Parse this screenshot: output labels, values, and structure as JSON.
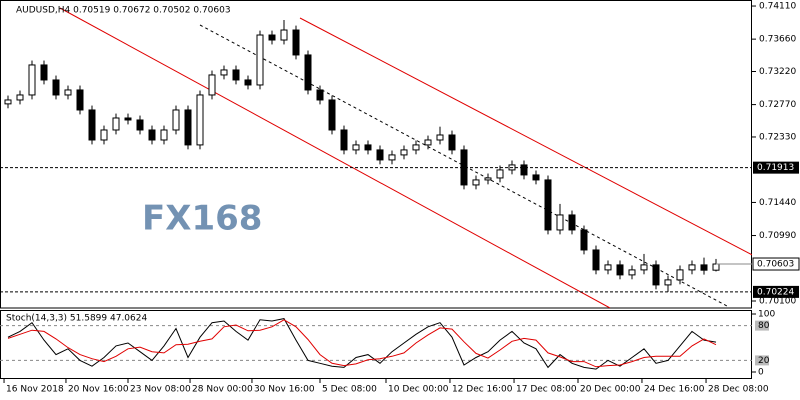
{
  "chart_data": [
    {
      "type": "candlestick",
      "title": "AUDUSD,H4  0.70519 0.70672 0.70502 0.70603",
      "watermark": "FX168",
      "open": [
        0.7278,
        0.72833,
        0.72901,
        0.73309,
        0.73105,
        0.72901,
        0.72969,
        0.72697,
        0.72289,
        0.72425,
        0.72588,
        0.72561,
        0.72425,
        0.72289,
        0.72425,
        0.72697,
        0.72222,
        0.72901,
        0.73173,
        0.73241,
        0.73105,
        0.73037,
        0.73716,
        0.73648,
        0.73784,
        0.73445,
        0.72969,
        0.72833,
        0.72425,
        0.72154,
        0.72222,
        0.72154,
        0.72018,
        0.72086,
        0.72154,
        0.72222,
        0.72289,
        0.72357,
        0.72154,
        0.71678,
        0.71746,
        0.71773,
        0.71882,
        0.7195,
        0.71814,
        0.71746,
        0.71066,
        0.7127,
        0.71066,
        0.70794,
        0.70523,
        0.70591,
        0.70455,
        0.70523,
        0.70591,
        0.70319,
        0.70387,
        0.70523,
        0.70591,
        0.70519
      ],
      "high": [
        0.72893,
        0.72961,
        0.73369,
        0.73369,
        0.73165,
        0.73029,
        0.73029,
        0.72757,
        0.72485,
        0.72648,
        0.72648,
        0.72621,
        0.72485,
        0.72485,
        0.72757,
        0.72757,
        0.72961,
        0.73233,
        0.73301,
        0.73301,
        0.73165,
        0.73776,
        0.73776,
        0.7392,
        0.73844,
        0.73505,
        0.73029,
        0.72893,
        0.72485,
        0.72282,
        0.72282,
        0.72214,
        0.72146,
        0.72214,
        0.72282,
        0.72349,
        0.7247,
        0.72417,
        0.72214,
        0.71806,
        0.71833,
        0.71942,
        0.7201,
        0.7201,
        0.71874,
        0.71806,
        0.7142,
        0.7133,
        0.71126,
        0.70854,
        0.70651,
        0.70651,
        0.70583,
        0.7074,
        0.70651,
        0.70447,
        0.70583,
        0.70651,
        0.7069,
        0.70672
      ],
      "low": [
        0.7272,
        0.72773,
        0.72841,
        0.73045,
        0.72841,
        0.72841,
        0.72637,
        0.72229,
        0.72229,
        0.72365,
        0.72501,
        0.72365,
        0.72229,
        0.72229,
        0.72365,
        0.72162,
        0.72162,
        0.72841,
        0.73113,
        0.73045,
        0.72977,
        0.72977,
        0.73588,
        0.73588,
        0.73385,
        0.72909,
        0.72773,
        0.72365,
        0.72094,
        0.72094,
        0.72094,
        0.71958,
        0.71958,
        0.72026,
        0.72094,
        0.72162,
        0.72229,
        0.72094,
        0.71618,
        0.71618,
        0.71686,
        0.71713,
        0.71822,
        0.71754,
        0.71686,
        0.71006,
        0.71006,
        0.71006,
        0.70734,
        0.70463,
        0.70463,
        0.70395,
        0.70395,
        0.70463,
        0.70259,
        0.70224,
        0.70327,
        0.70463,
        0.70459,
        0.70502
      ],
      "close": [
        0.72833,
        0.72901,
        0.73309,
        0.73105,
        0.72901,
        0.72969,
        0.72697,
        0.72289,
        0.72425,
        0.72588,
        0.72561,
        0.72425,
        0.72289,
        0.72425,
        0.72697,
        0.72222,
        0.72901,
        0.73173,
        0.73241,
        0.73105,
        0.73037,
        0.73716,
        0.73648,
        0.73784,
        0.73445,
        0.72969,
        0.72833,
        0.72425,
        0.72154,
        0.72222,
        0.72154,
        0.72018,
        0.72086,
        0.72154,
        0.72222,
        0.72289,
        0.72357,
        0.72154,
        0.71678,
        0.71746,
        0.71773,
        0.71882,
        0.7195,
        0.71814,
        0.71746,
        0.71066,
        0.7127,
        0.71066,
        0.70794,
        0.70523,
        0.70591,
        0.70455,
        0.70523,
        0.70591,
        0.70319,
        0.70387,
        0.70523,
        0.70591,
        0.70519,
        0.70603
      ],
      "ylim": [
        0.70005,
        0.74192
      ],
      "yticks": [
        {
          "value": 0.7411,
          "label": "0.74110"
        },
        {
          "value": 0.7366,
          "label": "0.73660"
        },
        {
          "value": 0.7322,
          "label": "0.73220"
        },
        {
          "value": 0.7277,
          "label": "0.72770"
        },
        {
          "value": 0.7233,
          "label": "0.72330"
        },
        {
          "value": 0.7144,
          "label": "0.71440"
        },
        {
          "value": 0.7099,
          "label": "0.70990"
        },
        {
          "value": 0.701,
          "label": "0.70100"
        }
      ],
      "xlim": [
        -0.6667,
        61.9167
      ],
      "xticks": [
        {
          "value": -0.33,
          "label": "16 Nov 2018"
        },
        {
          "value": 4.83,
          "label": "20 Nov 16:00"
        },
        {
          "value": 10,
          "label": "23 Nov 08:00"
        },
        {
          "value": 15.17,
          "label": "28 Nov 00:00"
        },
        {
          "value": 20.33,
          "label": "30 Nov 16:00"
        },
        {
          "value": 26,
          "label": "5 Dec 08:00"
        },
        {
          "value": 31.5,
          "label": "10 Dec 00:00"
        },
        {
          "value": 36.83,
          "label": "12 Dec 16:00"
        },
        {
          "value": 42.17,
          "label": "17 Dec 08:00"
        },
        {
          "value": 47.5,
          "label": "20 Dec 00:00"
        },
        {
          "value": 52.83,
          "label": "24 Dec 16:00"
        },
        {
          "value": 58.17,
          "label": "28 Dec 08:00"
        }
      ],
      "hlines": [
        0.71913,
        0.70224
      ],
      "last_price": 0.70603
    },
    {
      "type": "stochastic",
      "title": "Stoch(14,3,3) 51.5899 47.0624",
      "series": [
        {
          "color": "#000000",
          "values": [
            60,
            70,
            85,
            55,
            30,
            40,
            20,
            10,
            25,
            45,
            50,
            35,
            20,
            45,
            75,
            25,
            60,
            85,
            88,
            70,
            55,
            90,
            88,
            92,
            55,
            20,
            15,
            10,
            8,
            25,
            30,
            15,
            35,
            50,
            65,
            78,
            85,
            60,
            12,
            25,
            35,
            55,
            70,
            50,
            40,
            8,
            30,
            15,
            8,
            5,
            20,
            10,
            25,
            40,
            15,
            20,
            45,
            70,
            55,
            51.5899
          ]
        },
        {
          "color": "#e00000",
          "values": [
            58,
            65,
            72,
            70,
            57,
            42,
            30,
            23,
            18,
            27,
            40,
            43,
            35,
            33,
            47,
            48,
            53,
            57,
            78,
            81,
            71,
            72,
            78,
            90,
            78,
            56,
            30,
            15,
            11,
            14,
            21,
            23,
            27,
            33,
            50,
            64,
            76,
            74,
            52,
            32,
            24,
            38,
            53,
            58,
            55,
            33,
            26,
            18,
            18,
            9,
            11,
            12,
            18,
            25,
            27,
            27,
            27,
            45,
            57,
            47.0624
          ]
        }
      ],
      "ylim": [
        0,
        100
      ],
      "yticks": [
        100,
        80,
        20,
        0
      ]
    }
  ]
}
